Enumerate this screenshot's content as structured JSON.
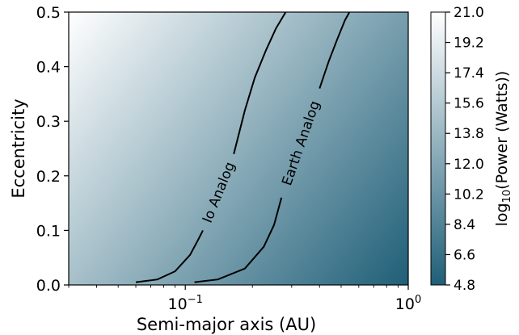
{
  "chart_data": {
    "type": "heatmap",
    "title": "",
    "xlabel": "Semi-major axis (AU)",
    "ylabel": "Eccentricity",
    "xscale": "log",
    "xlim": [
      0.03,
      1.0
    ],
    "ylim": [
      0.0,
      0.5
    ],
    "x_ticks": [
      {
        "value": 0.1,
        "base": "10",
        "exp": "−1"
      },
      {
        "value": 1.0,
        "base": "10",
        "exp": "0"
      }
    ],
    "y_ticks": [
      0.0,
      0.1,
      0.2,
      0.3,
      0.4,
      0.5
    ],
    "y_tick_labels": [
      "0.0",
      "0.1",
      "0.2",
      "0.3",
      "0.4",
      "0.5"
    ],
    "colorbar": {
      "label_prefix": "log",
      "label_sub": "10",
      "label_suffix": "(Power (Watts))",
      "min": 4.8,
      "max": 21.0,
      "ticks": [
        21.0,
        19.2,
        17.4,
        15.6,
        13.8,
        12.0,
        10.2,
        8.4,
        6.6,
        4.8
      ],
      "tick_labels": [
        "21.0",
        "19.2",
        "17.4",
        "15.6",
        "13.8",
        "12.0",
        "10.2",
        "8.4",
        "6.6",
        "4.8"
      ],
      "colors": [
        "#1f5f78",
        "#ffffff"
      ]
    },
    "contours": [
      {
        "label": "Io Analog",
        "points": [
          [
            0.06,
            0.005
          ],
          [
            0.075,
            0.01
          ],
          [
            0.09,
            0.025
          ],
          [
            0.105,
            0.055
          ],
          [
            0.115,
            0.085
          ],
          [
            0.12,
            0.1
          ]
        ],
        "points_upper": [
          [
            0.165,
            0.24
          ],
          [
            0.185,
            0.32
          ],
          [
            0.205,
            0.38
          ],
          [
            0.23,
            0.43
          ],
          [
            0.255,
            0.47
          ],
          [
            0.282,
            0.5
          ]
        ]
      },
      {
        "label": "Earth Analog",
        "points": [
          [
            0.11,
            0.005
          ],
          [
            0.14,
            0.01
          ],
          [
            0.185,
            0.03
          ],
          [
            0.225,
            0.07
          ],
          [
            0.25,
            0.11
          ],
          [
            0.27,
            0.16
          ]
        ],
        "points_upper": [
          [
            0.4,
            0.36
          ],
          [
            0.44,
            0.41
          ],
          [
            0.48,
            0.45
          ],
          [
            0.52,
            0.485
          ],
          [
            0.545,
            0.5
          ]
        ]
      }
    ]
  }
}
